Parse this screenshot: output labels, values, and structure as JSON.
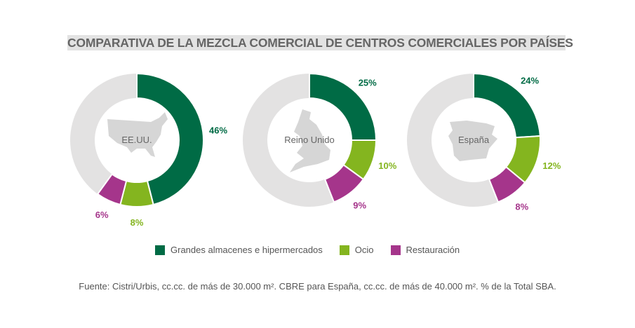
{
  "title": "COMPARATIVA DE LA MEZCLA COMERCIAL DE CENTROS COMERCIALES POR PAÍSES",
  "chart_data": [
    {
      "type": "pie",
      "donut": true,
      "center_label": "EE.UU.",
      "categories": [
        "Grandes almacenes e hipermercados",
        "Ocio",
        "Restauración"
      ],
      "values": [
        46,
        8,
        6
      ],
      "value_labels": [
        "46%",
        "8%",
        "6%"
      ]
    },
    {
      "type": "pie",
      "donut": true,
      "center_label": "Reino Unido",
      "categories": [
        "Grandes almacenes e hipermercados",
        "Ocio",
        "Restauración"
      ],
      "values": [
        25,
        10,
        9
      ],
      "value_labels": [
        "25%",
        "10%",
        "9%"
      ]
    },
    {
      "type": "pie",
      "donut": true,
      "center_label": "España",
      "categories": [
        "Grandes almacenes e hipermercados",
        "Ocio",
        "Restauración"
      ],
      "values": [
        24,
        12,
        8
      ],
      "value_labels": [
        "24%",
        "12%",
        "8%"
      ]
    }
  ],
  "legend": [
    {
      "label": "Grandes almacenes e hipermercados",
      "color": "#006b45"
    },
    {
      "label": "Ocio",
      "color": "#84b51f"
    },
    {
      "label": "Restauración",
      "color": "#a5358b"
    }
  ],
  "remainder_color": "#e3e2e2",
  "source": "Fuente: Cistri/Urbis, cc.cc. de más de 30.000 m². CBRE para España, cc.cc. de más de 40.000 m². % de la Total SBA."
}
